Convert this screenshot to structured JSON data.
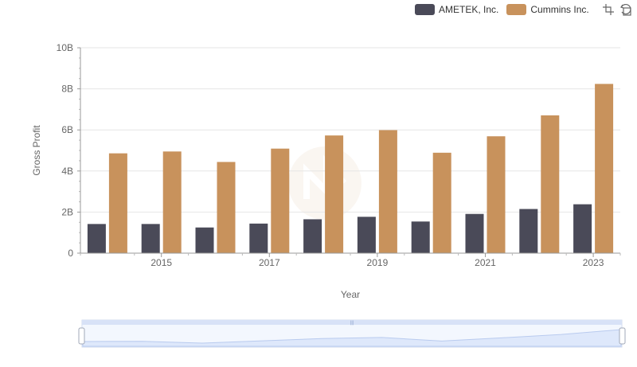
{
  "legend": {
    "items": [
      {
        "label": "AMETEK, Inc.",
        "color": "#4a4a58"
      },
      {
        "label": "Cummins Inc.",
        "color": "#c8925c"
      }
    ]
  },
  "toolbox": {
    "icons": [
      "zoom-icon",
      "restore-icon"
    ]
  },
  "chart_data": {
    "type": "bar",
    "xlabel": "Year",
    "ylabel": "Gross Profit",
    "ylim": [
      0,
      10000000000
    ],
    "y_ticks": [
      "0",
      "2B",
      "4B",
      "6B",
      "8B",
      "10B"
    ],
    "x_tick_labels": [
      "2015",
      "2017",
      "2019",
      "2021",
      "2023"
    ],
    "categories": [
      "2014",
      "2015",
      "2016",
      "2017",
      "2018",
      "2019",
      "2020",
      "2021",
      "2022",
      "2023"
    ],
    "grid": "horizontal",
    "legend_position": "top-right",
    "series": [
      {
        "name": "AMETEK, Inc.",
        "color": "#4a4a58",
        "values": [
          1420000000,
          1420000000,
          1250000000,
          1440000000,
          1650000000,
          1770000000,
          1540000000,
          1910000000,
          2150000000,
          2380000000
        ]
      },
      {
        "name": "Cummins Inc.",
        "color": "#c8925c",
        "values": [
          4860000000,
          4950000000,
          4440000000,
          5090000000,
          5730000000,
          5990000000,
          4890000000,
          5690000000,
          6710000000,
          8240000000
        ]
      }
    ]
  },
  "zoom_slider": {
    "start_percent": 0,
    "end_percent": 100
  }
}
